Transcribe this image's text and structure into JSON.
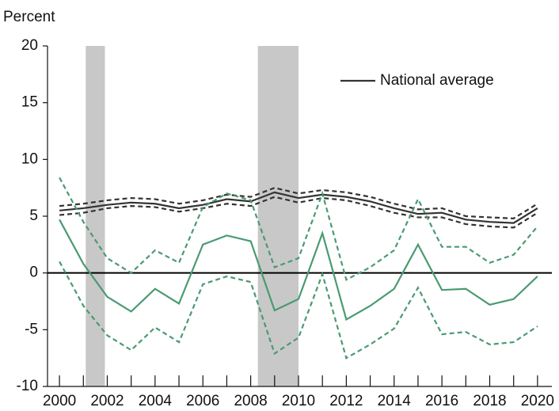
{
  "chart_data": {
    "type": "line",
    "ylabel": "Percent",
    "x": [
      2000,
      2001,
      2002,
      2003,
      2004,
      2005,
      2006,
      2007,
      2008,
      2009,
      2010,
      2011,
      2012,
      2013,
      2014,
      2015,
      2016,
      2017,
      2018,
      2019,
      2020
    ],
    "xlim": [
      1999.5,
      2020.6
    ],
    "xticks": [
      2000,
      2002,
      2004,
      2006,
      2008,
      2010,
      2012,
      2014,
      2016,
      2018,
      2020
    ],
    "xminorticks": [
      2001,
      2003,
      2005,
      2007,
      2009,
      2011,
      2013,
      2015,
      2017,
      2019
    ],
    "ylim": [
      -10,
      20
    ],
    "yticks": [
      -10,
      -5,
      0,
      5,
      10,
      15,
      20
    ],
    "bands": [
      [
        2001.1,
        2001.9
      ],
      [
        2008.3,
        2010.0
      ]
    ],
    "band_color": "#c8c8c8",
    "legend": "top-right",
    "series": [
      {
        "name": "National average",
        "color": "#333333",
        "dash": false,
        "values": [
          5.5,
          5.7,
          6.0,
          6.2,
          6.1,
          5.7,
          6.0,
          6.5,
          6.3,
          7.1,
          6.6,
          6.9,
          6.7,
          6.3,
          5.7,
          5.2,
          5.3,
          4.7,
          4.5,
          4.4,
          5.7
        ]
      },
      {
        "color": "#333333",
        "dash": true,
        "values": [
          5.9,
          6.1,
          6.4,
          6.6,
          6.5,
          6.1,
          6.4,
          6.9,
          6.7,
          7.5,
          7.0,
          7.3,
          7.1,
          6.7,
          6.1,
          5.6,
          5.7,
          5.0,
          4.9,
          4.8,
          6.1
        ]
      },
      {
        "color": "#333333",
        "dash": true,
        "values": [
          5.1,
          5.3,
          5.7,
          5.9,
          5.8,
          5.4,
          5.7,
          6.1,
          5.9,
          6.7,
          6.2,
          6.6,
          6.4,
          5.9,
          5.3,
          4.9,
          4.9,
          4.3,
          4.1,
          4.0,
          5.3
        ]
      },
      {
        "color": "#4a9a72",
        "dash": false,
        "values": [
          4.7,
          0.8,
          -2.1,
          -3.4,
          -1.4,
          -2.7,
          2.5,
          3.3,
          2.8,
          -3.3,
          -2.3,
          3.5,
          -4.1,
          -2.9,
          -1.4,
          2.5,
          -1.5,
          -1.4,
          -2.8,
          -2.3,
          -0.3
        ]
      },
      {
        "color": "#4a9a72",
        "dash": true,
        "values": [
          8.4,
          4.5,
          1.3,
          0.0,
          2.0,
          0.9,
          5.8,
          7.0,
          6.4,
          0.5,
          1.3,
          7.0,
          -0.6,
          0.5,
          2.0,
          6.5,
          2.3,
          2.3,
          0.9,
          1.6,
          4.1
        ]
      },
      {
        "color": "#4a9a72",
        "dash": true,
        "values": [
          1.0,
          -2.9,
          -5.5,
          -6.8,
          -4.8,
          -6.1,
          -1.0,
          -0.3,
          -0.8,
          -7.1,
          -5.7,
          -0.1,
          -7.5,
          -6.3,
          -4.9,
          -1.3,
          -5.4,
          -5.2,
          -6.3,
          -6.1,
          -4.7
        ]
      }
    ]
  }
}
